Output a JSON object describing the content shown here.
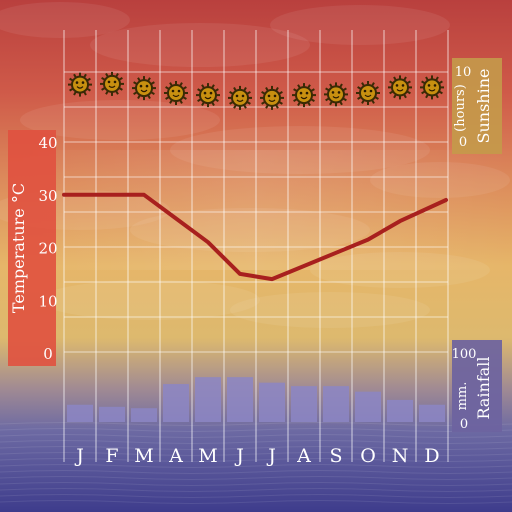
{
  "chart_data": {
    "type": "line",
    "months": [
      "J",
      "F",
      "M",
      "A",
      "M",
      "J",
      "J",
      "A",
      "S",
      "O",
      "N",
      "D"
    ],
    "temperature": {
      "label": "Temperature °C",
      "ticks": [
        40,
        30,
        20,
        10,
        0
      ],
      "ylim": [
        0,
        40
      ],
      "values": [
        30,
        30,
        30,
        25.5,
        21,
        15,
        14,
        16.5,
        19,
        21.5,
        25,
        29
      ]
    },
    "sunshine": {
      "label": "Sunshine",
      "unit_label": "(hours)",
      "tick_max": "10",
      "tick_min": "0",
      "values": [
        8.2,
        8.3,
        7.7,
        7.0,
        6.7,
        6.3,
        6.3,
        6.7,
        6.8,
        7.0,
        7.8,
        7.8
      ]
    },
    "rainfall": {
      "label": "Rainfall",
      "unit_label": "mm.",
      "tick_max": "100",
      "tick_min": "0",
      "ylim": [
        0,
        100
      ],
      "values": [
        25,
        22,
        20,
        55,
        65,
        65,
        57,
        52,
        52,
        44,
        32,
        25
      ]
    },
    "colors": {
      "temp_line": "#a8201e",
      "temp_panel": "#e0513f",
      "sun_panel": "#c49a4a",
      "rain_panel": "#6d63a0",
      "rain_bar": "#8c86c4",
      "sun_icon": "#c89010"
    },
    "grid": true
  }
}
